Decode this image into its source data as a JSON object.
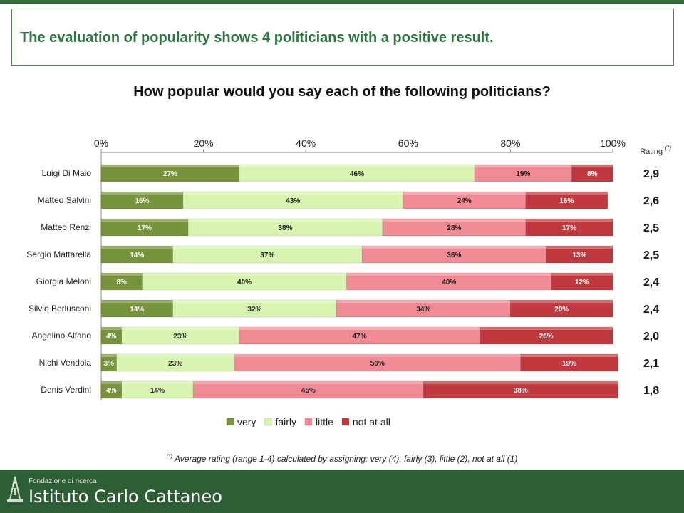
{
  "slide": {
    "title": "The evaluation of popularity shows 4 politicians with a positive result."
  },
  "footnote": {
    "marker": "(*)",
    "text": " Average rating (range 1-4) calculated by assigning: very (4), fairly (3), little (2), not at all (1)"
  },
  "footer": {
    "org_small": "Fondazione di ricerca",
    "org_large": "Istituto Carlo Cattaneo"
  },
  "chart_data": {
    "type": "bar",
    "orientation": "horizontal-stacked-100",
    "title": "How popular would you say each of the following politicians?",
    "xlim": [
      0,
      100
    ],
    "x_ticks": [
      "0%",
      "20%",
      "40%",
      "60%",
      "80%",
      "100%"
    ],
    "x_axis_position": "top",
    "legend_position": "bottom",
    "categories": [
      "Luigi Di Maio",
      "Matteo Salvini",
      "Matteo Renzi",
      "Sergio Mattarella",
      "Giorgia Meloni",
      "Silvio Berlusconi",
      "Angelino Alfano",
      "Nichi Vendola",
      "Denis Verdini"
    ],
    "series": [
      {
        "name": "very",
        "color": "#77933c",
        "values": [
          27,
          16,
          17,
          14,
          8,
          14,
          4,
          3,
          4
        ]
      },
      {
        "name": "fairly",
        "color": "#d7f4b0",
        "values": [
          46,
          43,
          38,
          37,
          40,
          32,
          23,
          23,
          14
        ]
      },
      {
        "name": "little",
        "color": "#f08a94",
        "values": [
          19,
          24,
          28,
          36,
          40,
          34,
          47,
          56,
          45
        ]
      },
      {
        "name": "not at all",
        "color": "#c0393e",
        "values": [
          8,
          16,
          17,
          13,
          12,
          20,
          26,
          19,
          38
        ]
      }
    ],
    "rating": {
      "label": "Rating",
      "marker": "(*)",
      "values": [
        "2,9",
        "2,6",
        "2,5",
        "2,5",
        "2,4",
        "2,4",
        "2,0",
        "2,1",
        "1,8"
      ]
    }
  }
}
